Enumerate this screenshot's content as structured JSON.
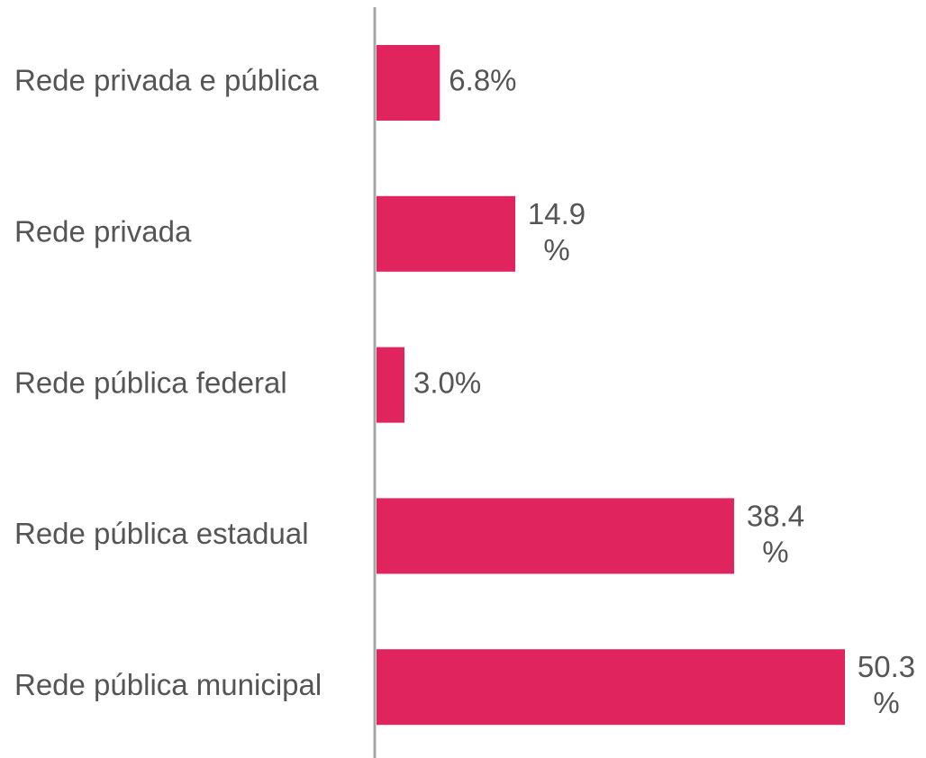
{
  "chart_data": {
    "type": "bar",
    "orientation": "horizontal",
    "categories": [
      "Rede privada e pública",
      "Rede privada",
      "Rede pública federal",
      "Rede pública estadual",
      "Rede pública municipal"
    ],
    "values": [
      6.8,
      14.9,
      3.0,
      38.4,
      50.3
    ],
    "value_labels": [
      "6.8%",
      "14.9%",
      "3.0%",
      "38.4%",
      "50.3%"
    ],
    "color": "#e0245e"
  }
}
